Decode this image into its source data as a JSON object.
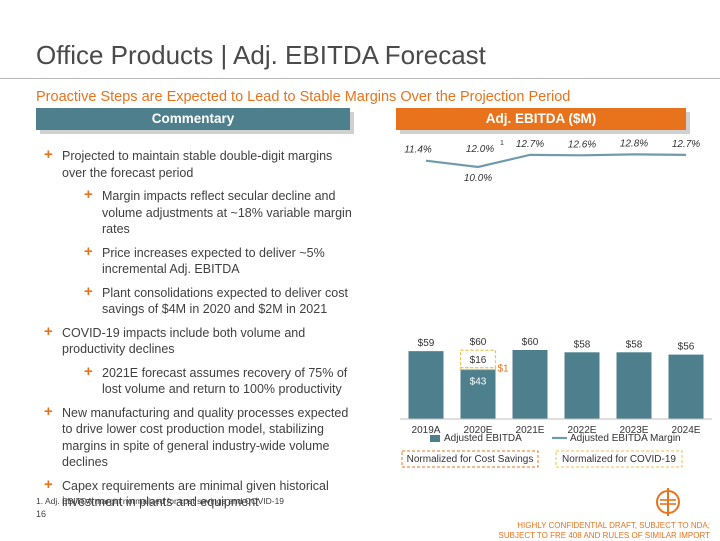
{
  "title": "Office Products | Adj. EBITDA Forecast",
  "subtitle": "Proactive Steps are Expected to Lead to Stable Margins Over the Projection Period",
  "commentary": {
    "header": "Commentary",
    "bullets": [
      {
        "level": 1,
        "text": "Projected to maintain stable double-digit margins over the forecast period"
      },
      {
        "level": 2,
        "text": "Margin impacts reflect secular decline and volume adjustments at ~18% variable margin rates"
      },
      {
        "level": 2,
        "text": "Price increases expected to deliver ~5% incremental Adj. EBITDA"
      },
      {
        "level": 2,
        "text": "Plant consolidations expected to deliver cost savings of $4M in 2020 and $2M in 2021"
      },
      {
        "level": 1,
        "text": "COVID-19 impacts include both volume and productivity declines"
      },
      {
        "level": 2,
        "text": "2021E forecast assumes recovery of 75% of lost volume and return to 100% productivity"
      },
      {
        "level": 1,
        "text": "New manufacturing and quality processes expected to drive lower cost production model, stabilizing margins in spite of general industry-wide volume declines"
      },
      {
        "level": 1,
        "text": "Capex requirements are minimal given historical investment in plants and equipment"
      }
    ]
  },
  "chart_data": {
    "type": "bar",
    "title": "Adj. EBITDA ($M)",
    "categories": [
      "2019A",
      "2020E",
      "2021E",
      "2022E",
      "2023E",
      "2024E"
    ],
    "series": [
      {
        "name": "Adjusted EBITDA",
        "values": [
          59,
          43,
          60,
          58,
          58,
          56
        ],
        "labels": [
          "$59",
          "$43",
          "$60",
          "$58",
          "$58",
          "$56"
        ]
      },
      {
        "name": "Normalized for Cost Savings",
        "values": [
          null,
          1,
          null,
          null,
          null,
          null
        ],
        "labels": [
          "",
          "$1",
          "",
          "",
          "",
          ""
        ]
      },
      {
        "name": "Normalized for COVID-19",
        "values": [
          null,
          16,
          null,
          null,
          null,
          null
        ],
        "labels": [
          "",
          "$16",
          "",
          "",
          "",
          ""
        ]
      },
      {
        "name": "Adjusted EBITDA Margin",
        "values": [
          11.4,
          10.0,
          12.7,
          12.6,
          12.8,
          12.7
        ],
        "labels": [
          "11.4%",
          "10.0%",
          "12.7%",
          "12.6%",
          "12.8%",
          "12.7%"
        ]
      }
    ],
    "normalized_total_2020": {
      "value": 60,
      "label": "$60"
    },
    "normalized_margin_2020": {
      "value": 12.0,
      "label": "12.0%",
      "footnote_marker": "1"
    },
    "legend": [
      "Adjusted EBITDA",
      "Adjusted EBITDA Margin",
      "Normalized for Cost Savings",
      "Normalized for COVID-19"
    ],
    "ylim": [
      0,
      70
    ]
  },
  "footnote": "1.     Adj. EBITDA margin normalized for cost savings and COVID-19",
  "page_number": "16",
  "confidential_line1": "HIGHLY CONFIDENTIAL DRAFT, SUBJECT TO NDA;",
  "confidential_line2": "SUBJECT TO FRE 408 AND RULES OF SIMILAR IMPORT",
  "colors": {
    "teal": "#4d7f8c",
    "orange": "#e8731c",
    "line": "#6f9cab",
    "dash": "#f2c14e"
  }
}
